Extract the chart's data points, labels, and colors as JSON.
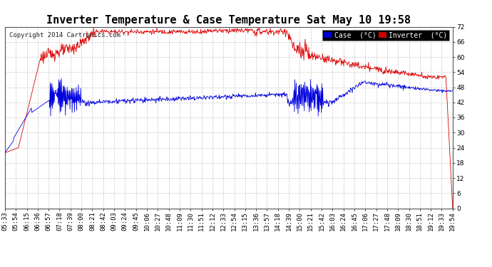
{
  "title": "Inverter Temperature & Case Temperature Sat May 10 19:58",
  "copyright": "Copyright 2014 Cartronics.com",
  "ylim": [
    0.0,
    72.0
  ],
  "yticks": [
    0.0,
    6.0,
    12.0,
    18.0,
    24.0,
    30.0,
    36.0,
    42.0,
    48.0,
    54.0,
    60.0,
    66.0,
    72.0
  ],
  "background_color": "#ffffff",
  "plot_bg_color": "#ffffff",
  "grid_color": "#c8c8c8",
  "case_color": "#0000dd",
  "inverter_color": "#dd0000",
  "legend_case_bg": "#0000cc",
  "legend_inv_bg": "#cc0000",
  "title_fontsize": 11,
  "tick_fontsize": 6.5,
  "n_points": 1000,
  "time_labels": [
    "05:33",
    "05:54",
    "06:15",
    "06:36",
    "06:57",
    "07:18",
    "07:39",
    "08:00",
    "08:21",
    "08:42",
    "09:03",
    "09:24",
    "09:45",
    "10:06",
    "10:27",
    "10:48",
    "11:09",
    "11:30",
    "11:51",
    "12:12",
    "12:33",
    "12:54",
    "13:15",
    "13:36",
    "13:57",
    "14:18",
    "14:39",
    "15:00",
    "15:21",
    "15:42",
    "16:03",
    "16:24",
    "16:45",
    "17:06",
    "17:27",
    "17:48",
    "18:09",
    "18:30",
    "18:51",
    "19:12",
    "19:33",
    "19:54"
  ]
}
